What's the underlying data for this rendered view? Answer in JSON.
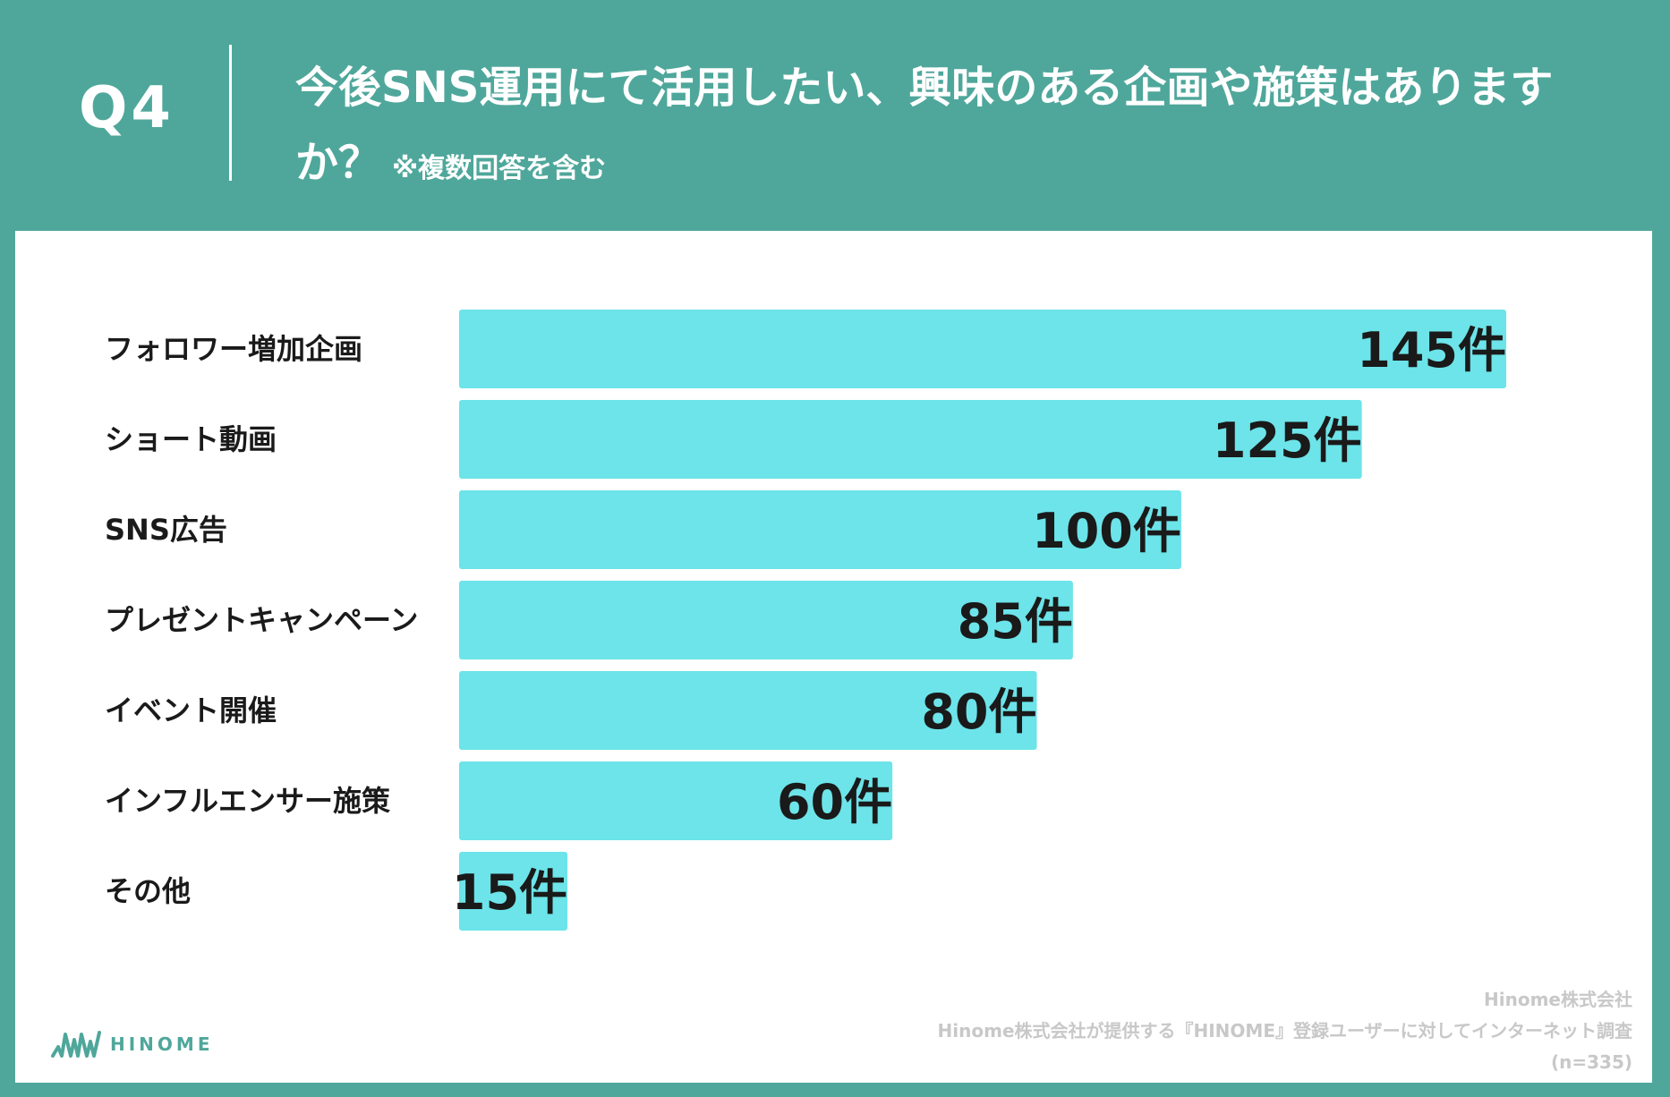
{
  "header": {
    "qnum": "Q4",
    "title": "今後SNS運用にて活用したい、興味のある企画や施策はありますか？",
    "note": "※複数回答を含む"
  },
  "colors": {
    "background": "#4fa79b",
    "bar": "#6ce4e9",
    "text": "#1a1a1a",
    "card": "#ffffff"
  },
  "chart_data": {
    "type": "bar",
    "orientation": "horizontal",
    "categories": [
      "フォロワー増加企画",
      "ショート動画",
      "SNS広告",
      "プレゼントキャンペーン",
      "イベント開催",
      "インフルエンサー施策",
      "その他"
    ],
    "values": [
      145,
      125,
      100,
      85,
      80,
      60,
      15
    ],
    "data_labels": [
      "145件",
      "125件",
      "100件",
      "85件",
      "80件",
      "60件",
      "15件"
    ],
    "title": "",
    "xlabel": "",
    "ylabel": "",
    "grid": false
  },
  "footer": {
    "line1": "Hinome株式会社",
    "line2": "Hinome株式会社が提供する『HINOME』登録ユーザーに対してインターネット調査",
    "line3": "(n=335)"
  },
  "logo": {
    "text": "HINOME",
    "icon": "hinome-logo-icon"
  }
}
